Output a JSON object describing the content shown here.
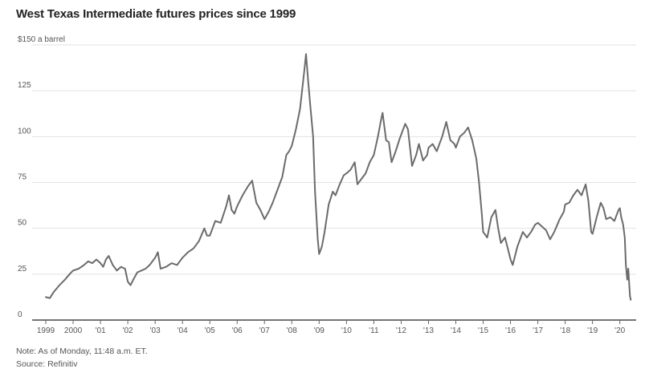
{
  "chart_data": {
    "type": "line",
    "title": "West Texas Intermediate futures prices since 1999",
    "unit_label": "a barrel",
    "ylim": [
      0,
      150
    ],
    "yticks": [
      {
        "value": 150,
        "label": "$150"
      },
      {
        "value": 125,
        "label": "125"
      },
      {
        "value": 100,
        "label": "100"
      },
      {
        "value": 75,
        "label": "75"
      },
      {
        "value": 50,
        "label": "50"
      },
      {
        "value": 25,
        "label": "25"
      },
      {
        "value": 0,
        "label": "0"
      }
    ],
    "xlim": [
      1999,
      2020.45
    ],
    "xticks": [
      {
        "value": 1999,
        "label": "1999"
      },
      {
        "value": 2000,
        "label": "2000"
      },
      {
        "value": 2001,
        "label": "'01"
      },
      {
        "value": 2002,
        "label": "'02"
      },
      {
        "value": 2003,
        "label": "'03"
      },
      {
        "value": 2004,
        "label": "'04"
      },
      {
        "value": 2005,
        "label": "'05"
      },
      {
        "value": 2006,
        "label": "'06"
      },
      {
        "value": 2007,
        "label": "'07"
      },
      {
        "value": 2008,
        "label": "'08"
      },
      {
        "value": 2009,
        "label": "'09"
      },
      {
        "value": 2010,
        "label": "'10"
      },
      {
        "value": 2011,
        "label": "'11"
      },
      {
        "value": 2012,
        "label": "'12"
      },
      {
        "value": 2013,
        "label": "'13"
      },
      {
        "value": 2014,
        "label": "'14"
      },
      {
        "value": 2015,
        "label": "'15"
      },
      {
        "value": 2016,
        "label": "'16"
      },
      {
        "value": 2017,
        "label": "'17"
      },
      {
        "value": 2018,
        "label": "'18"
      },
      {
        "value": 2019,
        "label": "'19"
      },
      {
        "value": 2020,
        "label": "'20"
      }
    ],
    "grid": true,
    "series": [
      {
        "color": "#6b6b6b",
        "points": [
          [
            1999.0,
            12.5
          ],
          [
            1999.15,
            12
          ],
          [
            1999.3,
            15.5
          ],
          [
            1999.5,
            19
          ],
          [
            1999.7,
            22
          ],
          [
            1999.9,
            25.5
          ],
          [
            2000.0,
            27
          ],
          [
            2000.2,
            28
          ],
          [
            2000.4,
            30
          ],
          [
            2000.55,
            32
          ],
          [
            2000.7,
            31
          ],
          [
            2000.85,
            33
          ],
          [
            2001.0,
            31
          ],
          [
            2001.1,
            29
          ],
          [
            2001.2,
            33
          ],
          [
            2001.3,
            35
          ],
          [
            2001.45,
            30
          ],
          [
            2001.6,
            27
          ],
          [
            2001.75,
            29
          ],
          [
            2001.9,
            28
          ],
          [
            2002.0,
            21
          ],
          [
            2002.1,
            19
          ],
          [
            2002.2,
            22
          ],
          [
            2002.35,
            26
          ],
          [
            2002.5,
            27
          ],
          [
            2002.65,
            28
          ],
          [
            2002.8,
            30
          ],
          [
            2003.0,
            34
          ],
          [
            2003.1,
            37
          ],
          [
            2003.2,
            28
          ],
          [
            2003.4,
            29
          ],
          [
            2003.6,
            31
          ],
          [
            2003.8,
            30
          ],
          [
            2004.0,
            34
          ],
          [
            2004.2,
            37
          ],
          [
            2004.4,
            39
          ],
          [
            2004.6,
            43
          ],
          [
            2004.8,
            50
          ],
          [
            2004.9,
            46
          ],
          [
            2005.0,
            46
          ],
          [
            2005.2,
            54
          ],
          [
            2005.4,
            53
          ],
          [
            2005.6,
            62
          ],
          [
            2005.7,
            68
          ],
          [
            2005.8,
            60
          ],
          [
            2005.9,
            58
          ],
          [
            2006.0,
            62
          ],
          [
            2006.2,
            68
          ],
          [
            2006.4,
            73
          ],
          [
            2006.55,
            76
          ],
          [
            2006.7,
            64
          ],
          [
            2006.85,
            60
          ],
          [
            2007.0,
            55
          ],
          [
            2007.15,
            59
          ],
          [
            2007.3,
            64
          ],
          [
            2007.5,
            72
          ],
          [
            2007.65,
            78
          ],
          [
            2007.8,
            90
          ],
          [
            2007.9,
            92
          ],
          [
            2008.0,
            95
          ],
          [
            2008.15,
            104
          ],
          [
            2008.3,
            115
          ],
          [
            2008.45,
            135
          ],
          [
            2008.52,
            145
          ],
          [
            2008.6,
            130
          ],
          [
            2008.7,
            113
          ],
          [
            2008.78,
            100
          ],
          [
            2008.85,
            70
          ],
          [
            2008.95,
            44
          ],
          [
            2009.0,
            36
          ],
          [
            2009.1,
            40
          ],
          [
            2009.2,
            48
          ],
          [
            2009.35,
            63
          ],
          [
            2009.5,
            70
          ],
          [
            2009.6,
            68
          ],
          [
            2009.75,
            74
          ],
          [
            2009.9,
            79
          ],
          [
            2010.0,
            80
          ],
          [
            2010.15,
            82
          ],
          [
            2010.3,
            86
          ],
          [
            2010.4,
            74
          ],
          [
            2010.55,
            77
          ],
          [
            2010.7,
            80
          ],
          [
            2010.85,
            86
          ],
          [
            2011.0,
            90
          ],
          [
            2011.15,
            100
          ],
          [
            2011.25,
            108
          ],
          [
            2011.32,
            113
          ],
          [
            2011.45,
            98
          ],
          [
            2011.55,
            97
          ],
          [
            2011.65,
            86
          ],
          [
            2011.8,
            92
          ],
          [
            2011.95,
            99
          ],
          [
            2012.0,
            101
          ],
          [
            2012.15,
            107
          ],
          [
            2012.25,
            104
          ],
          [
            2012.4,
            84
          ],
          [
            2012.55,
            90
          ],
          [
            2012.65,
            96
          ],
          [
            2012.8,
            87
          ],
          [
            2012.95,
            90
          ],
          [
            2013.0,
            94
          ],
          [
            2013.15,
            96
          ],
          [
            2013.3,
            92
          ],
          [
            2013.5,
            100
          ],
          [
            2013.65,
            108
          ],
          [
            2013.8,
            98
          ],
          [
            2013.95,
            96
          ],
          [
            2014.0,
            94
          ],
          [
            2014.15,
            100
          ],
          [
            2014.3,
            102
          ],
          [
            2014.45,
            105
          ],
          [
            2014.6,
            98
          ],
          [
            2014.75,
            88
          ],
          [
            2014.85,
            75
          ],
          [
            2014.95,
            58
          ],
          [
            2015.0,
            48
          ],
          [
            2015.15,
            45
          ],
          [
            2015.3,
            56
          ],
          [
            2015.45,
            60
          ],
          [
            2015.55,
            50
          ],
          [
            2015.65,
            42
          ],
          [
            2015.8,
            45
          ],
          [
            2015.92,
            38
          ],
          [
            2016.0,
            33
          ],
          [
            2016.08,
            30
          ],
          [
            2016.25,
            40
          ],
          [
            2016.45,
            48
          ],
          [
            2016.6,
            45
          ],
          [
            2016.75,
            48
          ],
          [
            2016.9,
            52
          ],
          [
            2017.0,
            53
          ],
          [
            2017.15,
            51
          ],
          [
            2017.3,
            49
          ],
          [
            2017.45,
            44
          ],
          [
            2017.6,
            48
          ],
          [
            2017.8,
            55
          ],
          [
            2017.95,
            59
          ],
          [
            2018.0,
            63
          ],
          [
            2018.15,
            64
          ],
          [
            2018.3,
            68
          ],
          [
            2018.45,
            71
          ],
          [
            2018.6,
            68
          ],
          [
            2018.75,
            74
          ],
          [
            2018.85,
            65
          ],
          [
            2018.95,
            48
          ],
          [
            2019.0,
            47
          ],
          [
            2019.15,
            56
          ],
          [
            2019.3,
            64
          ],
          [
            2019.4,
            61
          ],
          [
            2019.5,
            55
          ],
          [
            2019.65,
            56
          ],
          [
            2019.8,
            54
          ],
          [
            2019.95,
            60
          ],
          [
            2020.0,
            61
          ],
          [
            2020.05,
            56
          ],
          [
            2020.12,
            52
          ],
          [
            2020.18,
            45
          ],
          [
            2020.22,
            30
          ],
          [
            2020.27,
            22
          ],
          [
            2020.31,
            28
          ],
          [
            2020.34,
            20
          ],
          [
            2020.37,
            13
          ],
          [
            2020.4,
            11
          ]
        ]
      }
    ]
  },
  "footer": {
    "note": "Note: As of Monday, 11:48 a.m. ET.",
    "source": "Source: Refinitiv"
  }
}
